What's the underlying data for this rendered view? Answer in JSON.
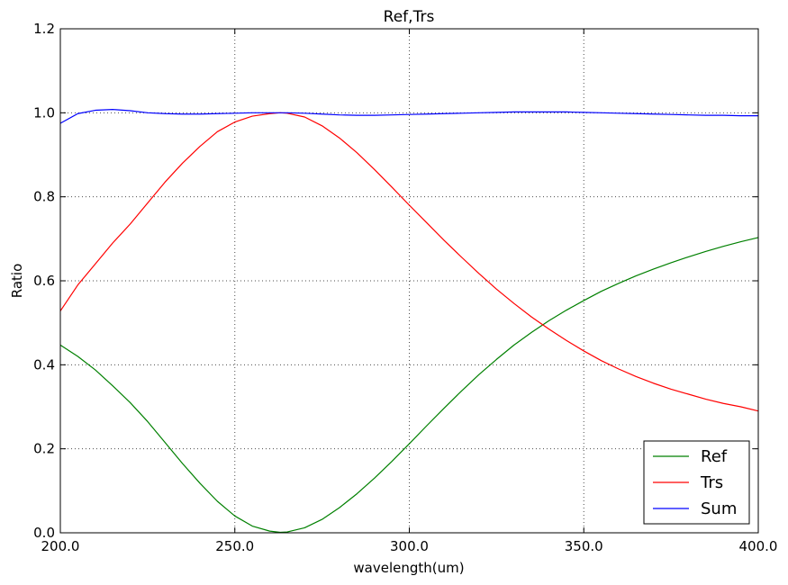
{
  "chart_data": {
    "type": "line",
    "title": "Ref,Trs",
    "xlabel": "wavelength(um)",
    "ylabel": "Ratio",
    "xlim": [
      200,
      400
    ],
    "ylim": [
      0,
      1.2
    ],
    "xticks": [
      200,
      250,
      300,
      350,
      400
    ],
    "xtick_labels": [
      "200.0",
      "250.0",
      "300.0",
      "350.0",
      "400.0"
    ],
    "yticks": [
      0,
      0.2,
      0.4,
      0.6,
      0.8,
      1.0,
      1.2
    ],
    "ytick_labels": [
      "0.0",
      "0.2",
      "0.4",
      "0.6",
      "0.8",
      "1.0",
      "1.2"
    ],
    "grid": true,
    "legend_position": "bottom-right",
    "series": [
      {
        "name": "Ref",
        "color": "#008000",
        "x": [
          200,
          205,
          210,
          215,
          220,
          225,
          230,
          235,
          240,
          245,
          250,
          255,
          260,
          263,
          265,
          270,
          275,
          280,
          285,
          290,
          295,
          300,
          305,
          310,
          315,
          320,
          325,
          330,
          335,
          340,
          345,
          350,
          355,
          360,
          365,
          370,
          375,
          380,
          385,
          390,
          395,
          400
        ],
        "y": [
          0.447,
          0.42,
          0.388,
          0.35,
          0.31,
          0.265,
          0.215,
          0.165,
          0.118,
          0.075,
          0.04,
          0.016,
          0.004,
          0.001,
          0.002,
          0.012,
          0.032,
          0.06,
          0.093,
          0.13,
          0.17,
          0.212,
          0.255,
          0.297,
          0.338,
          0.377,
          0.413,
          0.447,
          0.477,
          0.505,
          0.53,
          0.553,
          0.575,
          0.594,
          0.612,
          0.628,
          0.643,
          0.657,
          0.67,
          0.682,
          0.693,
          0.703
        ]
      },
      {
        "name": "Trs",
        "color": "#ff0000",
        "x": [
          200,
          205,
          210,
          215,
          220,
          225,
          230,
          235,
          240,
          245,
          250,
          255,
          260,
          263,
          265,
          270,
          275,
          280,
          285,
          290,
          295,
          300,
          305,
          310,
          315,
          320,
          325,
          330,
          335,
          340,
          345,
          350,
          355,
          360,
          365,
          370,
          375,
          380,
          385,
          390,
          395,
          400
        ],
        "y": [
          0.528,
          0.59,
          0.64,
          0.69,
          0.735,
          0.785,
          0.835,
          0.88,
          0.92,
          0.955,
          0.978,
          0.992,
          0.998,
          1.0,
          0.999,
          0.99,
          0.969,
          0.94,
          0.905,
          0.865,
          0.823,
          0.78,
          0.738,
          0.696,
          0.656,
          0.617,
          0.58,
          0.546,
          0.514,
          0.485,
          0.458,
          0.433,
          0.41,
          0.39,
          0.372,
          0.356,
          0.342,
          0.33,
          0.318,
          0.308,
          0.3,
          0.29
        ]
      },
      {
        "name": "Sum",
        "color": "#0000ff",
        "x": [
          200,
          205,
          210,
          215,
          220,
          225,
          230,
          235,
          240,
          245,
          250,
          255,
          260,
          263,
          265,
          270,
          275,
          280,
          285,
          290,
          295,
          300,
          305,
          310,
          315,
          320,
          325,
          330,
          335,
          340,
          345,
          350,
          355,
          360,
          365,
          370,
          375,
          380,
          385,
          390,
          395,
          400
        ],
        "y": [
          0.975,
          0.998,
          1.006,
          1.008,
          1.005,
          1.0,
          0.998,
          0.997,
          0.997,
          0.998,
          0.999,
          1.0,
          1.0,
          1.0,
          1.0,
          0.999,
          0.997,
          0.995,
          0.994,
          0.994,
          0.995,
          0.996,
          0.997,
          0.998,
          0.999,
          1.0,
          1.001,
          1.002,
          1.002,
          1.002,
          1.002,
          1.001,
          1.0,
          0.999,
          0.998,
          0.997,
          0.996,
          0.995,
          0.994,
          0.994,
          0.993,
          0.993
        ]
      }
    ]
  }
}
